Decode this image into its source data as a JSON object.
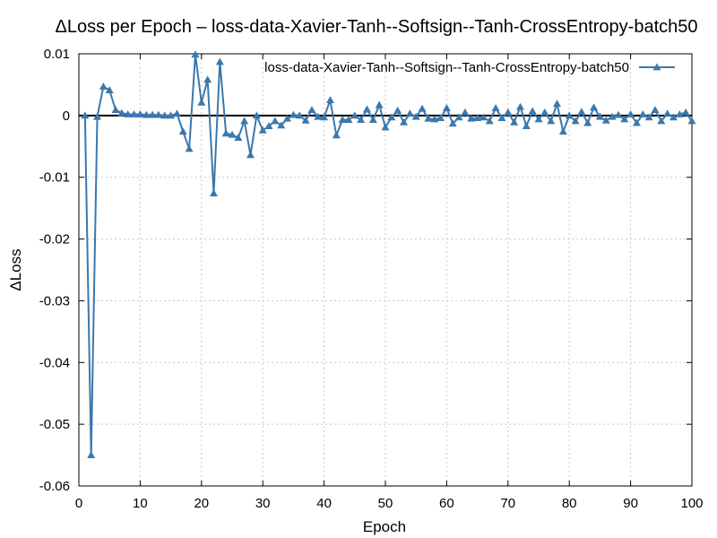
{
  "chart_data": {
    "type": "line",
    "title": "ΔLoss per Epoch – loss-data-Xavier-Tanh--Softsign--Tanh-CrossEntropy-batch50",
    "xlabel": "Epoch",
    "ylabel": "ΔLoss",
    "xlim": [
      0,
      100
    ],
    "ylim": [
      -0.06,
      0.01
    ],
    "xticks": [
      0,
      10,
      20,
      30,
      40,
      50,
      60,
      70,
      80,
      90,
      100
    ],
    "yticks": [
      -0.06,
      -0.05,
      -0.04,
      -0.03,
      -0.02,
      -0.01,
      0,
      0.01
    ],
    "xtick_labels": [
      "0",
      "10",
      "20",
      "30",
      "40",
      "50",
      "60",
      "70",
      "80",
      "90",
      "100"
    ],
    "ytick_labels": [
      "-0.06",
      "-0.05",
      "-0.04",
      "-0.03",
      "-0.02",
      "-0.01",
      "0",
      "0.01"
    ],
    "grid": true,
    "legend_position": "top-right",
    "series": [
      {
        "name": "loss-data-Xavier-Tanh--Softsign--Tanh-CrossEntropy-batch50",
        "color": "#3a78ad",
        "marker": "triangle",
        "x": [
          1,
          2,
          3,
          4,
          5,
          6,
          7,
          8,
          9,
          10,
          11,
          12,
          13,
          14,
          15,
          16,
          17,
          18,
          19,
          20,
          21,
          22,
          23,
          24,
          25,
          26,
          27,
          28,
          29,
          30,
          31,
          32,
          33,
          34,
          35,
          36,
          37,
          38,
          39,
          40,
          41,
          42,
          43,
          44,
          45,
          46,
          47,
          48,
          49,
          50,
          51,
          52,
          53,
          54,
          55,
          56,
          57,
          58,
          59,
          60,
          61,
          62,
          63,
          64,
          65,
          66,
          67,
          68,
          69,
          70,
          71,
          72,
          73,
          74,
          75,
          76,
          77,
          78,
          79,
          80,
          81,
          82,
          83,
          84,
          85,
          86,
          87,
          88,
          89,
          90,
          91,
          92,
          93,
          94,
          95,
          96,
          97,
          98,
          99,
          100
        ],
        "y": [
          0,
          -0.055,
          -0.0002,
          0.0047,
          0.0041,
          0.0009,
          0.0004,
          0.0002,
          0.0002,
          0.0002,
          0.0001,
          0.0001,
          0.0001,
          0,
          0,
          0.0003,
          -0.0026,
          -0.0054,
          0.0099,
          0.0021,
          0.0058,
          -0.0126,
          0.0087,
          -0.0029,
          -0.0031,
          -0.0036,
          -0.0009,
          -0.0064,
          0,
          -0.0024,
          -0.0017,
          -0.0009,
          -0.0016,
          -0.0005,
          0.0001,
          0,
          -0.0008,
          0.0009,
          -0.0002,
          -0.0003,
          0.0025,
          -0.0032,
          -0.0007,
          -0.0007,
          0,
          -0.0007,
          0.001,
          -0.0007,
          0.0017,
          -0.0019,
          -0.0003,
          0.0008,
          -0.0011,
          0.0003,
          -0.0002,
          0.0011,
          -0.0005,
          -0.0006,
          -0.0004,
          0.0012,
          -0.0013,
          -0.0003,
          0.0005,
          -0.0005,
          -0.0004,
          -0.0003,
          -0.0009,
          0.0012,
          -0.0004,
          0.0005,
          -0.0011,
          0.0014,
          -0.0017,
          0.0007,
          -0.0006,
          0.0005,
          -0.0009,
          0.0019,
          -0.0026,
          0,
          -0.0009,
          0.0006,
          -0.0012,
          0.0013,
          -0.0002,
          -0.0008,
          -0.0002,
          0.0001,
          -0.0006,
          0.0002,
          -0.0012,
          0.0002,
          -0.0003,
          0.0009,
          -0.0009,
          0.0003,
          -0.0003,
          0.0002,
          0.0005,
          -0.0009
        ]
      }
    ]
  }
}
